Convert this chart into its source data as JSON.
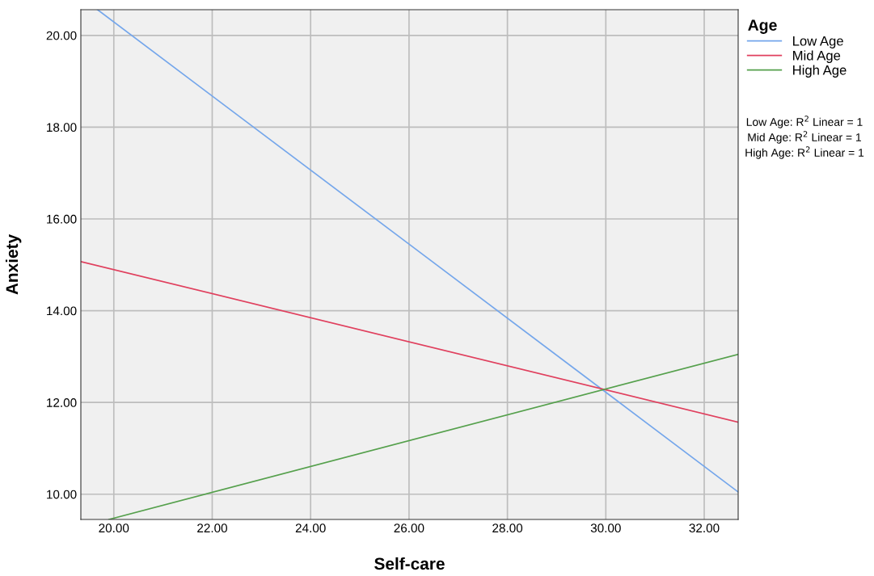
{
  "chart_data": {
    "type": "line",
    "xlabel": "Self-care",
    "ylabel": "Anxiety",
    "legend_title": "Age",
    "legend": "right",
    "grid": true,
    "marker": "none",
    "line_style": "solid",
    "series": [
      {
        "name": "Low Age",
        "color": "#74a6eb",
        "x": [
          19.67,
          32.69
        ],
        "values": [
          20.56,
          10.05
        ]
      },
      {
        "name": "Mid Age",
        "color": "#e0405e",
        "x": [
          19.33,
          32.69
        ],
        "values": [
          15.07,
          11.57
        ]
      },
      {
        "name": "High Age",
        "color": "#55a04c",
        "x": [
          19.9,
          32.69
        ],
        "values": [
          9.45,
          13.05
        ]
      }
    ],
    "annotations": [
      "Low Age: R$^{2}$ Linear = 1",
      "Mid Age: R$^{2}$ Linear = 1",
      "High Age: R$^{2}$ Linear = 1"
    ],
    "xlim": [
      19.33,
      32.69
    ],
    "ylim": [
      9.45,
      20.56
    ],
    "xticks": [
      {
        "value": 20,
        "label": "20.00"
      },
      {
        "value": 22,
        "label": "22.00"
      },
      {
        "value": 24,
        "label": "24.00"
      },
      {
        "value": 26,
        "label": "26.00"
      },
      {
        "value": 28,
        "label": "28.00"
      },
      {
        "value": 30,
        "label": "30.00"
      },
      {
        "value": 32,
        "label": "32.00"
      }
    ],
    "yticks": [
      {
        "value": 10,
        "label": "10.00"
      },
      {
        "value": 12,
        "label": "12.00"
      },
      {
        "value": 14,
        "label": "14.00"
      },
      {
        "value": 16,
        "label": "16.00"
      },
      {
        "value": 18,
        "label": "18.00"
      },
      {
        "value": 20,
        "label": "20.00"
      }
    ]
  }
}
